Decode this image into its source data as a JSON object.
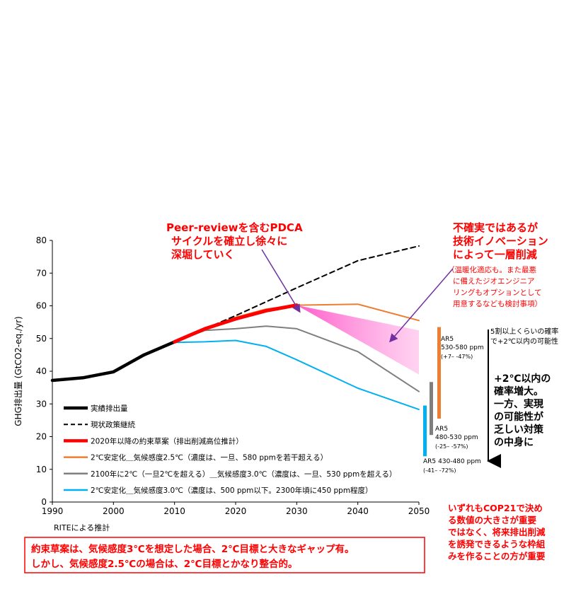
{
  "chart_data": {
    "type": "line",
    "ylabel": "GHG排出量 (GtCO2-eq./yr)",
    "xlim": [
      1990,
      2050
    ],
    "ylim": [
      0,
      80
    ],
    "xticks": [
      1990,
      2000,
      2010,
      2020,
      2030,
      2040,
      2050
    ],
    "yticks": [
      0,
      10,
      20,
      30,
      40,
      50,
      60,
      70,
      80
    ],
    "grid": false,
    "legend_position": "bottom-left",
    "series": [
      {
        "name": "実績排出量",
        "color": "#000000",
        "style": "solid-thick",
        "x": [
          1990,
          1995,
          2000,
          2005,
          2010
        ],
        "y": [
          37.2,
          38.0,
          39.8,
          45.0,
          49.0
        ]
      },
      {
        "name": "現状政策継続",
        "color": "#000000",
        "style": "dashed",
        "x": [
          2010,
          2020,
          2030,
          2040,
          2050
        ],
        "y": [
          49.0,
          57.0,
          65.5,
          73.8,
          78.3
        ]
      },
      {
        "name": "2020年以降の約束草案（排出削減高位推計）",
        "color": "#ff0000",
        "style": "solid-thick",
        "x": [
          2010,
          2015,
          2020,
          2025,
          2030
        ],
        "y": [
          49.0,
          53.0,
          56.0,
          58.5,
          60.2
        ]
      },
      {
        "name": "2℃安定化＿気候感度2.5℃（濃度は、一旦、580 ppmを若干超える）",
        "color": "#ed7d31",
        "style": "solid",
        "x": [
          2010,
          2015,
          2020,
          2025,
          2030,
          2040,
          2050
        ],
        "y": [
          49.0,
          53.0,
          56.5,
          59.0,
          60.2,
          60.5,
          55.5
        ]
      },
      {
        "name": "2100年に2℃（一旦2℃を超える）＿気候感度3.0℃（濃度は、一旦、530 ppmを超える）",
        "color": "#7f7f7f",
        "style": "solid",
        "x": [
          2010,
          2015,
          2020,
          2025,
          2030,
          2040,
          2050
        ],
        "y": [
          49.0,
          52.5,
          53.0,
          53.8,
          53.0,
          46.0,
          33.8
        ]
      },
      {
        "name": "2℃安定化＿気候感度3.0℃（濃度は、500 ppm以下。2300年頃に450 ppm程度）",
        "color": "#00b0f0",
        "style": "solid",
        "x": [
          2010,
          2015,
          2020,
          2025,
          2030,
          2040,
          2050
        ],
        "y": [
          48.8,
          49.0,
          49.4,
          47.6,
          43.5,
          34.8,
          28.3
        ]
      }
    ],
    "range_band": {
      "color": "#ff66cc",
      "x": [
        2030,
        2050
      ],
      "upper": [
        60.2,
        52.5
      ],
      "lower": [
        60.2,
        39.0
      ]
    },
    "ar5_bars": [
      {
        "label": "AR5",
        "range_label": "530-580 ppm",
        "pct": "(+7– -47%)",
        "color": "#ed7d31",
        "ymin": 25.5,
        "ymax": 53.5
      },
      {
        "label": "AR5",
        "range_label": "480-530 ppm",
        "pct": "(-25– -57%)",
        "color": "#7f7f7f",
        "ymin": 20.5,
        "ymax": 36.7
      },
      {
        "label": "AR5",
        "range_label": "430-480 ppm",
        "pct": "(-41– -72%)",
        "color": "#00b0f0",
        "ymin": 14.0,
        "ymax": 29.5
      }
    ]
  },
  "annotations": {
    "pdca": [
      "Peer-reviewを含むPDCA",
      "サイクルを確立し徐々に",
      "深堀していく"
    ],
    "innovation": [
      "不確実ではあるが",
      "技術イノベーション",
      "によって一層削減"
    ],
    "innovation_note": [
      "（温暖化適応も。また最悪",
      "に備えたジオエンジニア",
      "リングもオプションとして",
      "用意するなども検討事項）"
    ],
    "prob_note": [
      "5割以上くらいの確率",
      "で+2℃以内の可能性"
    ],
    "prob_increase": [
      "+2℃以内の",
      "確率増大。",
      "一方、実現",
      "の可能性が",
      "乏しい対策",
      "の中身に"
    ],
    "cop21": [
      "いずれもCOP21で決め",
      "る数値の大きさが重要",
      "ではなく、将来排出削減",
      "を誘発できるような枠組",
      "みを作ることの方が重要"
    ],
    "source": "RITEによる推計",
    "bottom_box": [
      "約束草案は、気候感度3℃を想定した場合、2℃目標と大きなギャップ有。",
      "しかし、気候感度2.5℃の場合は、2℃目標とかなり整合的。"
    ]
  },
  "colors": {
    "accent_red": "#ff0000",
    "band_pink": "#ff66cc",
    "arrow_purple": "#7030a0"
  }
}
